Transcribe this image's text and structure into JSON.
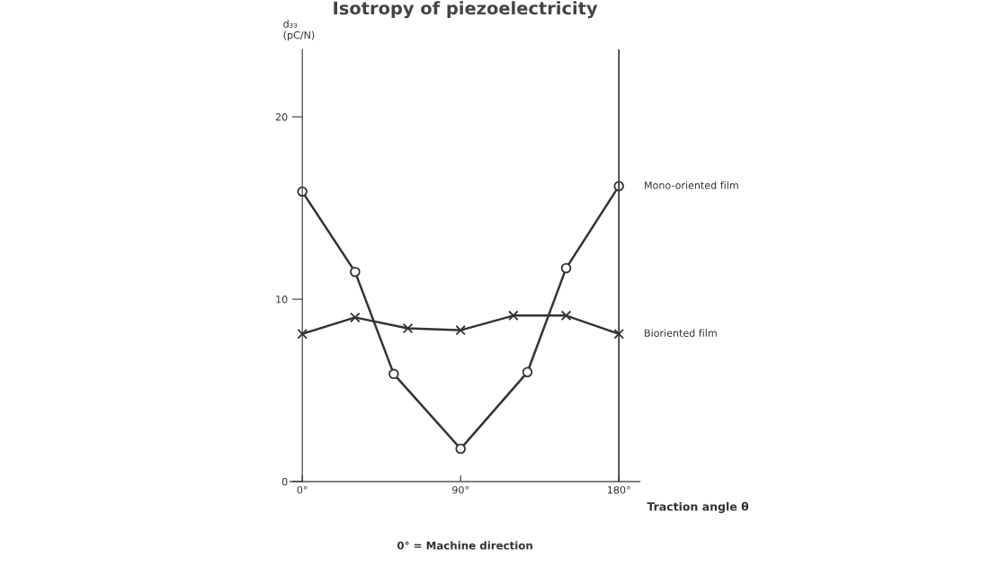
{
  "chart_data": {
    "type": "line",
    "title": "Isotropy of piezoelectricity",
    "ylabel": "d₃₃\n(pC/N)",
    "xlabel": "Traction angle θ",
    "annotations": [
      "0° = Machine direction"
    ],
    "xlim": [
      -7,
      192
    ],
    "xticks": [
      {
        "value": 0,
        "label": "0°"
      },
      {
        "value": 90,
        "label": "90°"
      },
      {
        "value": 180,
        "label": "180°"
      }
    ],
    "ylim": [
      0,
      23.7
    ],
    "yticks": [
      0,
      10,
      20
    ],
    "ref_lines": [
      {
        "axis": "x",
        "value": 180,
        "label": null,
        "color": "#333333"
      }
    ],
    "grid": false,
    "legend": false,
    "series": [
      {
        "name": "Mono-oriented film",
        "color": "#333333",
        "marker": "circle",
        "x": [
          0,
          30,
          52,
          90,
          128,
          150,
          180
        ],
        "values": [
          15.9,
          11.5,
          5.9,
          1.8,
          6.0,
          11.7,
          16.2
        ]
      },
      {
        "name": "Bioriented film",
        "color": "#333333",
        "marker": "cross",
        "x": [
          0,
          30,
          60,
          90,
          120,
          150,
          180
        ],
        "values": [
          8.1,
          9.0,
          8.4,
          8.3,
          9.1,
          9.1,
          8.1
        ]
      }
    ]
  }
}
